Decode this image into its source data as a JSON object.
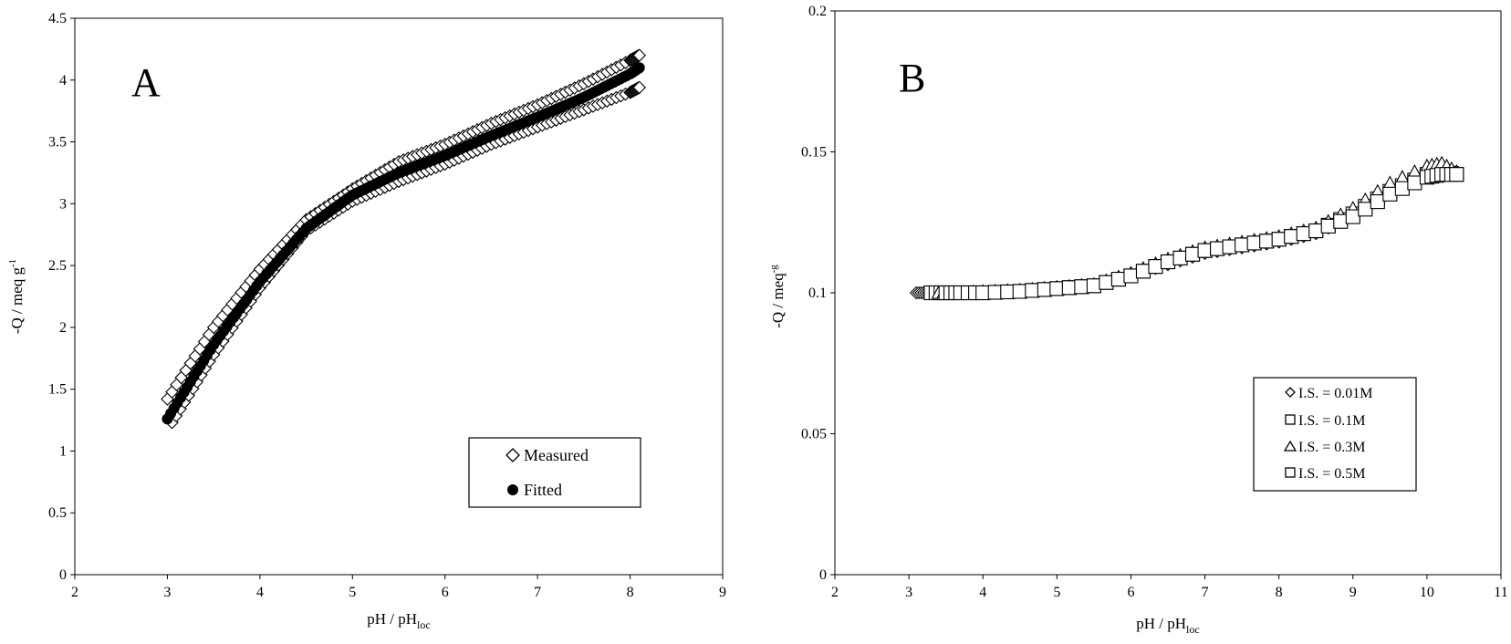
{
  "chart_data": [
    {
      "type": "scatter",
      "panel_label": "A",
      "xlabel": "pH / pH",
      "xlabel_sub": "loc",
      "ylabel": "-Q / meq g",
      "ylabel_sup": "-1",
      "xlim": [
        2,
        9
      ],
      "ylim": [
        0,
        4.5
      ],
      "xticks": [
        "2",
        "3",
        "4",
        "5",
        "6",
        "7",
        "8",
        "9"
      ],
      "yticks": [
        "0",
        "0.5",
        "1",
        "1.5",
        "2",
        "2.5",
        "3",
        "3.5",
        "4",
        "4.5"
      ],
      "grid": false,
      "legend_position": "bottom-right",
      "series": [
        {
          "name": "Measured",
          "marker": "diamond-open",
          "curves": [
            {
              "x": [
                3.0,
                3.5,
                4.0,
                4.5,
                5.0,
                5.5,
                6.0,
                6.5,
                7.0,
                7.5,
                8.0,
                8.1
              ],
              "y": [
                1.42,
                2.0,
                2.47,
                2.87,
                3.12,
                3.34,
                3.48,
                3.65,
                3.8,
                3.97,
                4.16,
                4.2
              ]
            },
            {
              "x": [
                3.05,
                3.5,
                4.0,
                4.5,
                5.0,
                5.5,
                6.0,
                6.5,
                7.0,
                7.5,
                8.0,
                8.1
              ],
              "y": [
                1.23,
                1.78,
                2.32,
                2.78,
                3.02,
                3.18,
                3.32,
                3.48,
                3.62,
                3.76,
                3.9,
                3.94
              ]
            }
          ]
        },
        {
          "name": "Fitted",
          "marker": "filled-circle",
          "curves": [
            {
              "x": [
                3.0,
                3.5,
                4.0,
                4.5,
                5.0,
                5.5,
                6.0,
                6.5,
                7.0,
                7.5,
                8.0,
                8.1
              ],
              "y": [
                1.26,
                1.86,
                2.37,
                2.8,
                3.07,
                3.25,
                3.39,
                3.55,
                3.7,
                3.86,
                4.05,
                4.1
              ]
            }
          ]
        }
      ]
    },
    {
      "type": "scatter",
      "panel_label": "B",
      "xlabel": "pH / pH",
      "xlabel_sub": "loc",
      "ylabel": "-Q / meq",
      "ylabel_sup": "-g",
      "xlim": [
        2,
        11
      ],
      "ylim": [
        0,
        0.2
      ],
      "xticks": [
        "2",
        "3",
        "4",
        "5",
        "6",
        "7",
        "8",
        "9",
        "10",
        "11"
      ],
      "yticks": [
        "0",
        "0.05",
        "0.1",
        "0.15",
        "0.2"
      ],
      "grid": false,
      "legend_position": "bottom-right",
      "series": [
        {
          "name": "I.S. = 0.01M",
          "marker": "diamond-open",
          "x": [
            3.1,
            3.2,
            3.3,
            3.5,
            4.0,
            4.5,
            5.0,
            5.5,
            6.0,
            6.5,
            7.0,
            7.5,
            8.0,
            8.5,
            9.0,
            9.5,
            10.0,
            10.2,
            10.4
          ],
          "y": [
            0.1,
            0.1,
            0.1,
            0.1,
            0.1005,
            0.101,
            0.102,
            0.1025,
            0.106,
            0.11,
            0.114,
            0.116,
            0.118,
            0.121,
            0.127,
            0.137,
            0.144,
            0.145,
            0.143
          ]
        },
        {
          "name": "I.S. = 0.1M",
          "marker": "square-open",
          "x": [
            3.3,
            3.5,
            4.0,
            4.5,
            5.0,
            5.5,
            6.0,
            6.5,
            7.0,
            7.5,
            8.0,
            8.5,
            9.0,
            9.5,
            10.0,
            10.2,
            10.4
          ],
          "y": [
            0.1,
            0.1,
            0.1,
            0.1005,
            0.1015,
            0.1025,
            0.106,
            0.111,
            0.115,
            0.117,
            0.119,
            0.122,
            0.128,
            0.136,
            0.142,
            0.143,
            0.142
          ]
        },
        {
          "name": "I.S. = 0.3M",
          "marker": "triangle-open",
          "x": [
            3.4,
            3.6,
            4.0,
            4.5,
            5.0,
            5.5,
            6.0,
            6.5,
            7.0,
            7.5,
            8.0,
            8.5,
            9.0,
            9.5,
            10.0,
            10.2,
            10.4
          ],
          "y": [
            0.1,
            0.1,
            0.1005,
            0.101,
            0.102,
            0.103,
            0.107,
            0.112,
            0.116,
            0.118,
            0.12,
            0.123,
            0.13,
            0.139,
            0.145,
            0.146,
            0.143
          ]
        },
        {
          "name": "I.S. = 0.5M",
          "marker": "square-open",
          "x": [
            3.5,
            3.7,
            4.0,
            4.5,
            5.0,
            5.5,
            6.0,
            6.5,
            7.0,
            7.5,
            8.0,
            8.5,
            9.0,
            9.5,
            10.0,
            10.2,
            10.4
          ],
          "y": [
            0.1,
            0.1,
            0.1,
            0.1005,
            0.1015,
            0.1025,
            0.106,
            0.111,
            0.115,
            0.117,
            0.119,
            0.122,
            0.127,
            0.135,
            0.141,
            0.142,
            0.142
          ]
        }
      ]
    }
  ]
}
